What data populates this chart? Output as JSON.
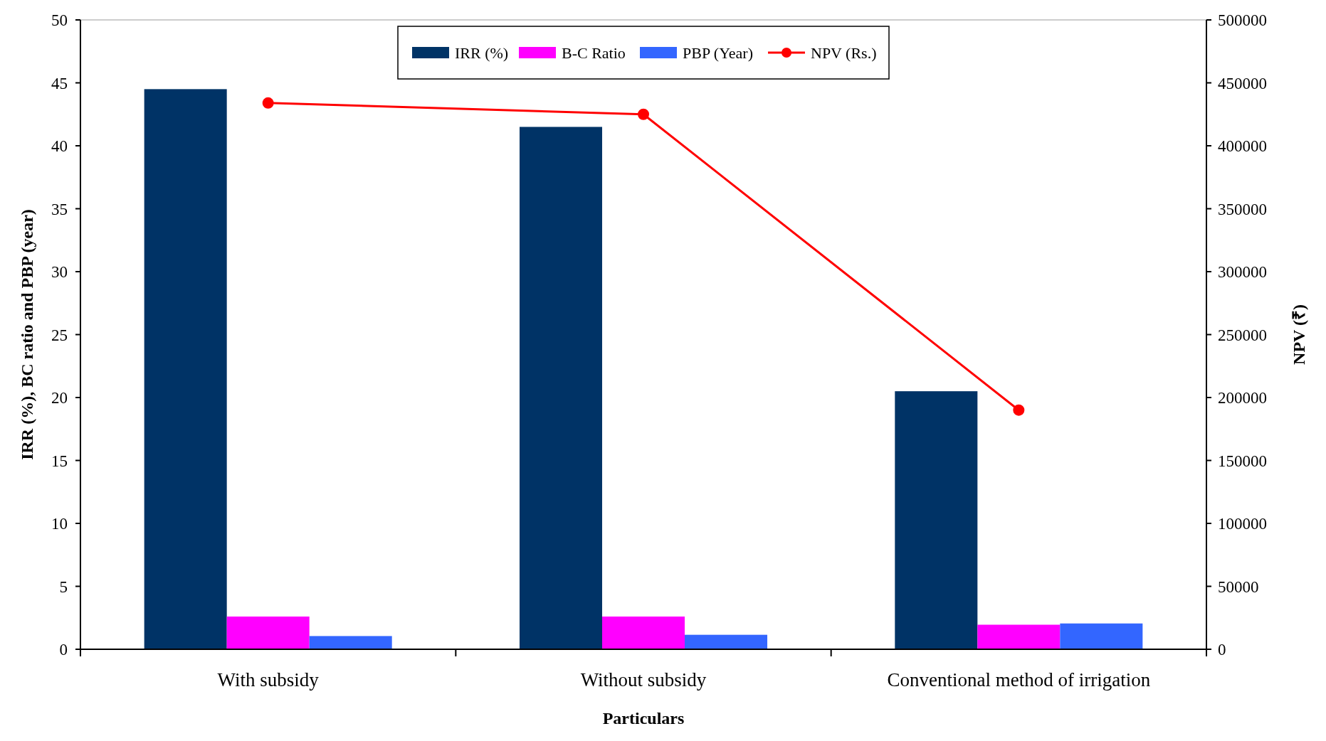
{
  "chart_data": {
    "type": "bar",
    "xlabel": "Particulars",
    "ylabel": "IRR (%), BC ratio and PBP (year)",
    "y2label": "NPV (₹)",
    "categories": [
      "With subsidy",
      "Without subsidy",
      "Conventional method of irrigation"
    ],
    "series": [
      {
        "name": "IRR (%)",
        "color": "#003366",
        "values": [
          44.5,
          41.5,
          20.5
        ]
      },
      {
        "name": "B-C Ratio",
        "color": "#ff00ff",
        "values": [
          2.6,
          2.6,
          1.95
        ]
      },
      {
        "name": "PBP (Year)",
        "color": "#3366ff",
        "values": [
          1.05,
          1.15,
          2.05
        ]
      },
      {
        "name": "NPV (Rs.)",
        "color": "#ff0000",
        "type": "line",
        "axis": "y2",
        "marker": "circle",
        "values": [
          434000,
          425000,
          190000
        ]
      }
    ],
    "ylim": [
      0,
      50
    ],
    "yticks": [
      0,
      5,
      10,
      15,
      20,
      25,
      30,
      35,
      40,
      45,
      50
    ],
    "y2lim": [
      0,
      500000
    ],
    "y2ticks": [
      0,
      50000,
      100000,
      150000,
      200000,
      250000,
      300000,
      350000,
      400000,
      450000,
      500000
    ],
    "legend": "top",
    "grid": false
  }
}
